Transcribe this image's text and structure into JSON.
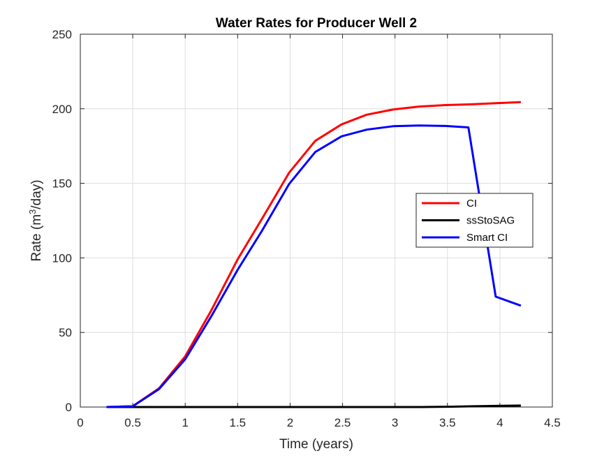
{
  "chart_data": {
    "type": "line",
    "title": "Water Rates for Producer Well 2",
    "xlabel": "Time (years)",
    "ylabel_prefix": "Rate (m",
    "ylabel_sup": "3",
    "ylabel_suffix": "/day)",
    "xlim": [
      0,
      4.5
    ],
    "ylim": [
      0,
      250
    ],
    "xticks": [
      0,
      0.5,
      1,
      1.5,
      2,
      2.5,
      3,
      3.5,
      4,
      4.5
    ],
    "xtick_labels": [
      "0",
      "0.5",
      "1",
      "1.5",
      "2",
      "2.5",
      "3",
      "3.5",
      "4",
      "4.5"
    ],
    "yticks": [
      0,
      50,
      100,
      150,
      200,
      250
    ],
    "ytick_labels": [
      "0",
      "50",
      "100",
      "150",
      "200",
      "250"
    ],
    "grid": true,
    "legend_position": "right",
    "series": [
      {
        "name": "CI",
        "color": "#ff0000",
        "x": [
          0.25,
          0.5,
          0.75,
          1.0,
          1.25,
          1.5,
          1.73,
          1.99,
          2.24,
          2.49,
          2.73,
          2.98,
          3.23,
          3.48,
          3.73,
          3.97,
          4.2
        ],
        "y": [
          0,
          0.5,
          12.5,
          34,
          65,
          99,
          126,
          157,
          178.5,
          189.5,
          196,
          199.5,
          201.5,
          202.5,
          203,
          203.8,
          204.5
        ]
      },
      {
        "name": "ssStoSAG",
        "color": "#000000",
        "x": [
          0.25,
          0.5,
          0.75,
          1.0,
          1.5,
          2.0,
          2.5,
          3.0,
          3.25,
          3.5,
          3.75,
          4.0,
          4.2
        ],
        "y": [
          0,
          0,
          0,
          0,
          0,
          0,
          0,
          0,
          0,
          0.2,
          0.5,
          0.8,
          1.0
        ]
      },
      {
        "name": "Smart CI",
        "color": "#0000ff",
        "x": [
          0.25,
          0.5,
          0.75,
          1.0,
          1.25,
          1.5,
          1.73,
          1.99,
          2.24,
          2.49,
          2.73,
          2.98,
          3.23,
          3.48,
          3.7,
          3.96,
          4.2
        ],
        "y": [
          0,
          0.5,
          12,
          32,
          61,
          92,
          118,
          149.5,
          171,
          181.5,
          186,
          188.3,
          188.8,
          188.5,
          187.5,
          74,
          68
        ]
      }
    ]
  }
}
